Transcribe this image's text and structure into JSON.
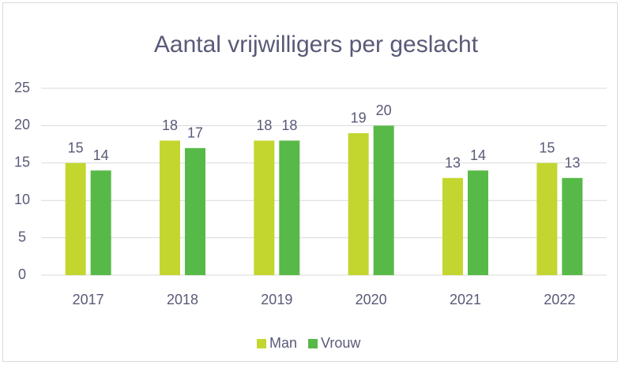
{
  "chart_data": {
    "type": "bar",
    "title": "Aantal vrijwilligers per geslacht",
    "categories": [
      "2017",
      "2018",
      "2019",
      "2020",
      "2021",
      "2022"
    ],
    "series": [
      {
        "name": "Man",
        "color": "#c3d62f",
        "values": [
          15,
          18,
          18,
          19,
          13,
          15
        ]
      },
      {
        "name": "Vrouw",
        "color": "#57b947",
        "values": [
          14,
          17,
          18,
          20,
          14,
          13
        ]
      }
    ],
    "ylim": [
      0,
      25
    ],
    "yticks": [
      0,
      5,
      10,
      15,
      20,
      25
    ],
    "grid": true,
    "legend": "bottom"
  }
}
